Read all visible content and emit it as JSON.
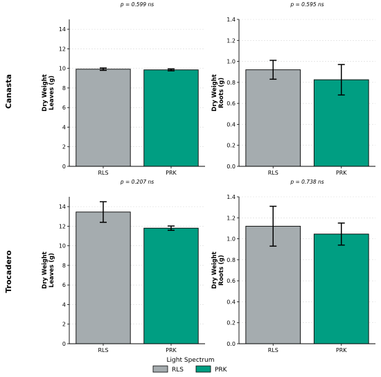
{
  "rows": [
    {
      "label": "Canasta"
    },
    {
      "label": "Trocadero"
    }
  ],
  "legend": {
    "title": "Light Spectrum",
    "items": [
      {
        "label": "RLS",
        "color": "#a5acaf"
      },
      {
        "label": "PRK",
        "color": "#009e82"
      }
    ]
  },
  "chart_data": [
    {
      "type": "bar",
      "cultivar": "Canasta",
      "p_text": "p = 0.599 ns",
      "ylabel_lines": [
        "Dry Weight",
        "Leaves (g)"
      ],
      "categories": [
        "RLS",
        "PRK"
      ],
      "values": [
        9.92,
        9.85
      ],
      "errors": [
        0.12,
        0.1
      ],
      "ylim": [
        0,
        15
      ],
      "yticks": [
        0,
        2,
        4,
        6,
        8,
        10,
        12,
        14
      ],
      "ytick_labels": [
        "0",
        "2",
        "4",
        "6",
        "8",
        "10",
        "12",
        "14"
      ],
      "grid": true
    },
    {
      "type": "bar",
      "cultivar": "Canasta",
      "p_text": "p = 0.595 ns",
      "ylabel_lines": [
        "Dry Weight",
        "Roots (g)"
      ],
      "categories": [
        "RLS",
        "PRK"
      ],
      "values": [
        0.92,
        0.825
      ],
      "errors": [
        0.09,
        0.145
      ],
      "ylim": [
        0,
        1.4
      ],
      "yticks": [
        0,
        0.2,
        0.4,
        0.6,
        0.8,
        1.0,
        1.2,
        1.4
      ],
      "ytick_labels": [
        "0.0",
        "0.2",
        "0.4",
        "0.6",
        "0.8",
        "1.0",
        "1.2",
        "1.4"
      ],
      "grid": true
    },
    {
      "type": "bar",
      "cultivar": "Trocadero",
      "p_text": "p = 0.207 ns",
      "ylabel_lines": [
        "Dry Weight",
        "Leaves (g)"
      ],
      "categories": [
        "RLS",
        "PRK"
      ],
      "values": [
        13.45,
        11.8
      ],
      "errors": [
        1.05,
        0.22
      ],
      "ylim": [
        0,
        15
      ],
      "yticks": [
        0,
        2,
        4,
        6,
        8,
        10,
        12,
        14
      ],
      "ytick_labels": [
        "0",
        "2",
        "4",
        "6",
        "8",
        "10",
        "12",
        "14"
      ],
      "grid": true
    },
    {
      "type": "bar",
      "cultivar": "Trocadero",
      "p_text": "p = 0.738 ns",
      "ylabel_lines": [
        "Dry Weight",
        "Roots (g)"
      ],
      "categories": [
        "RLS",
        "PRK"
      ],
      "values": [
        1.12,
        1.045
      ],
      "errors": [
        0.19,
        0.105
      ],
      "ylim": [
        0,
        1.4
      ],
      "yticks": [
        0,
        0.2,
        0.4,
        0.6,
        0.8,
        1.0,
        1.2,
        1.4
      ],
      "ytick_labels": [
        "0.0",
        "0.2",
        "0.4",
        "0.6",
        "0.8",
        "1.0",
        "1.2",
        "1.4"
      ],
      "grid": true
    }
  ]
}
